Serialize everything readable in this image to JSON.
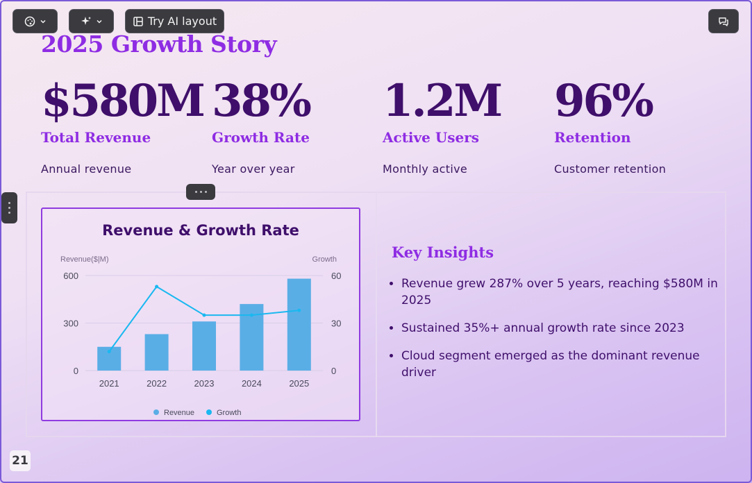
{
  "toolbar": {
    "theme_icon": "palette-icon",
    "ai_icon": "sparkle-icon",
    "ai_layout_label": "Try AI layout",
    "comment_icon": "comments-icon"
  },
  "slide": {
    "title": "2025 Growth Story",
    "page_number": "21"
  },
  "stats": [
    {
      "value": "$580M",
      "label": "Total Revenue",
      "sub": "Annual revenue"
    },
    {
      "value": "38%",
      "label": "Growth Rate",
      "sub": "Year over year"
    },
    {
      "value": "1.2M",
      "label": "Active Users",
      "sub": "Monthly active"
    },
    {
      "value": "96%",
      "label": "Retention",
      "sub": "Customer retention"
    }
  ],
  "chart_data": {
    "type": "bar",
    "title": "Revenue & Growth Rate",
    "categories": [
      "2021",
      "2022",
      "2023",
      "2024",
      "2025"
    ],
    "series": [
      {
        "name": "Revenue",
        "type": "bar",
        "axis": "left",
        "color": "#5aaee6",
        "values": [
          150,
          230,
          310,
          420,
          580
        ]
      },
      {
        "name": "Growth",
        "type": "line",
        "axis": "right",
        "color": "#1ab8f0",
        "values": [
          12,
          53,
          35,
          35,
          38
        ]
      }
    ],
    "ylabel_left": "Revenue($|M)",
    "ylabel_right": "Growth",
    "ylim_left": [
      0,
      600
    ],
    "ylim_right": [
      0,
      60
    ],
    "yticks_left": [
      "0",
      "300",
      "600"
    ],
    "yticks_right": [
      "0",
      "30",
      "60"
    ],
    "grid": true,
    "legend": "bottom"
  },
  "insights": {
    "title": "Key Insights",
    "items": [
      "Revenue grew 287% over 5 years, reaching $580M in 2025",
      "Sustained 35%+ annual growth rate since 2023",
      "Cloud segment emerged as the dominant revenue driver"
    ]
  }
}
